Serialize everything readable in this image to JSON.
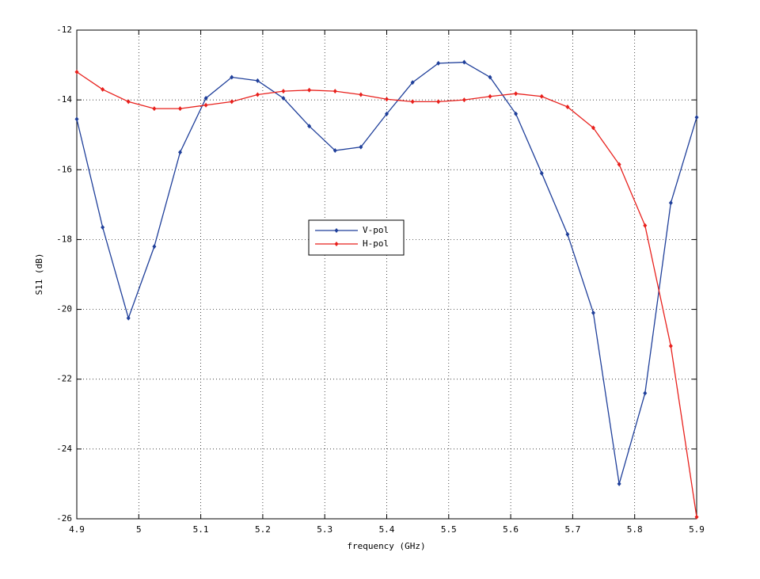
{
  "chart_data": {
    "type": "line",
    "xlabel": "frequency (GHz)",
    "ylabel": "S11 (dB)",
    "x": [
      4.9,
      4.9417,
      4.9833,
      5.025,
      5.0667,
      5.1083,
      5.15,
      5.1917,
      5.2333,
      5.275,
      5.3167,
      5.3583,
      5.4,
      5.4417,
      5.4833,
      5.525,
      5.5667,
      5.6083,
      5.65,
      5.6917,
      5.7333,
      5.775,
      5.8167,
      5.8583,
      5.9
    ],
    "series": [
      {
        "name": "V-pol",
        "color": "#1f3f9a",
        "values": [
          -14.55,
          -17.65,
          -20.25,
          -18.2,
          -15.5,
          -13.95,
          -13.35,
          -13.45,
          -13.95,
          -14.75,
          -15.45,
          -15.35,
          -14.4,
          -13.5,
          -12.95,
          -12.92,
          -13.35,
          -14.4,
          -16.1,
          -17.85,
          -20.1,
          -25.0,
          -22.4,
          -16.95,
          -14.5
        ]
      },
      {
        "name": "H-pol",
        "color": "#e8201c",
        "values": [
          -13.2,
          -13.7,
          -14.05,
          -14.25,
          -14.25,
          -14.15,
          -14.05,
          -13.85,
          -13.75,
          -13.72,
          -13.75,
          -13.85,
          -13.98,
          -14.05,
          -14.05,
          -14.0,
          -13.9,
          -13.82,
          -13.9,
          -14.2,
          -14.8,
          -15.85,
          -17.6,
          -21.05,
          -25.95
        ]
      }
    ],
    "xlim": [
      4.9,
      5.9
    ],
    "xticks": [
      4.9,
      5,
      5.1,
      5.2,
      5.3,
      5.4,
      5.5,
      5.6,
      5.7,
      5.8,
      5.9
    ],
    "ylim": [
      -26,
      -12
    ],
    "yticks": [
      -26,
      -24,
      -22,
      -20,
      -18,
      -16,
      -14,
      -12
    ],
    "grid": true,
    "legend": "center"
  }
}
